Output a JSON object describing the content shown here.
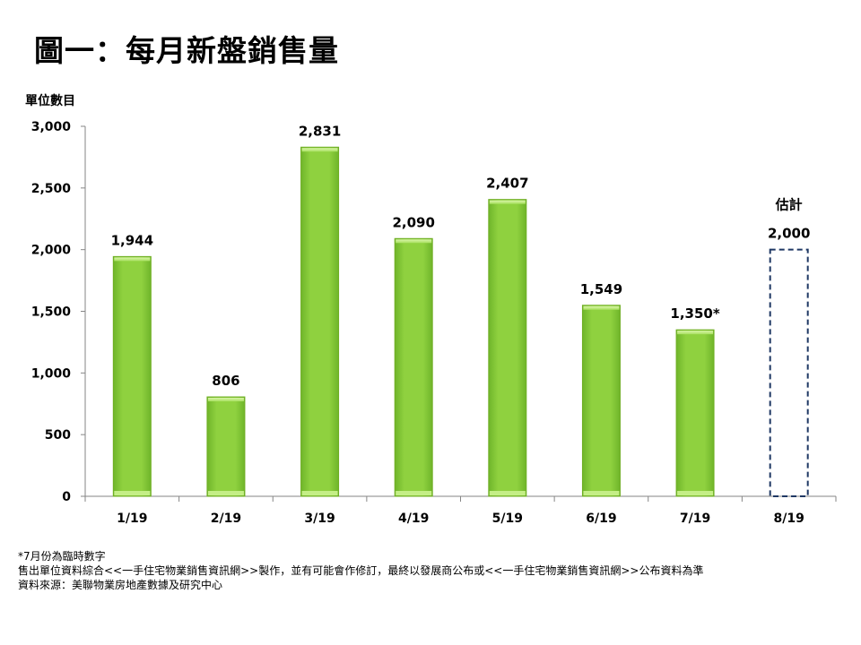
{
  "title": "圖一：每月新盤銷售量",
  "chart_data": {
    "type": "bar",
    "ylabel": "單位數目",
    "xlabel": "",
    "ylim": [
      0,
      3000
    ],
    "yticks": [
      0,
      500,
      1000,
      1500,
      2000,
      2500,
      3000
    ],
    "ytick_labels": [
      "0",
      "500",
      "1,000",
      "1,500",
      "2,000",
      "2,500",
      "3,000"
    ],
    "categories": [
      "1/19",
      "2/19",
      "3/19",
      "4/19",
      "5/19",
      "6/19",
      "7/19",
      "8/19"
    ],
    "values": [
      1944,
      806,
      2831,
      2090,
      2407,
      1549,
      1350,
      2000
    ],
    "value_labels": [
      "1,944",
      "806",
      "2,831",
      "2,090",
      "2,407",
      "1,549",
      "1,350*",
      "2,000"
    ],
    "bar_styles": [
      "solid",
      "solid",
      "solid",
      "solid",
      "solid",
      "solid",
      "solid",
      "dashed-outline"
    ],
    "annotation": {
      "category": "8/19",
      "text": "估計"
    },
    "grid": false,
    "colors": {
      "bar": "#8fd13f",
      "bar_dark": "#6fae23",
      "estimate_outline": "#1f3864",
      "axis": "#868686"
    }
  },
  "footnotes": [
    "*7月份為臨時數字",
    "售出單位資料綜合<<一手住宅物業銷售資訊網>>製作，並有可能會作修訂，最終以發展商公布或<<一手住宅物業銷售資訊網>>公布資料為準",
    "資料來源：美聯物業房地產數據及研究中心"
  ]
}
